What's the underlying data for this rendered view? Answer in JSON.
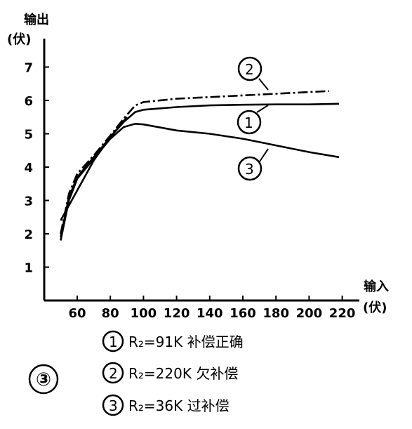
{
  "chart_data": {
    "type": "line",
    "figure_label": "③",
    "ylabel": "输出",
    "yunit": "(伏)",
    "xlabel": "输入",
    "xunit": "(伏)",
    "xlim": [
      45,
      225
    ],
    "ylim": [
      0,
      7.8
    ],
    "x_ticks": [
      "60",
      "80",
      "100",
      "120",
      "140",
      "160",
      "180",
      "200",
      "220"
    ],
    "y_ticks": [
      "1",
      "2",
      "3",
      "4",
      "5",
      "6",
      "7"
    ],
    "series": [
      {
        "marker": "1",
        "name": "R2=91K 补偿正确",
        "style": "solid",
        "points": [
          [
            50,
            1.9
          ],
          [
            55,
            3.1
          ],
          [
            60,
            3.7
          ],
          [
            70,
            4.3
          ],
          [
            80,
            4.9
          ],
          [
            88,
            5.35
          ],
          [
            95,
            5.65
          ],
          [
            100,
            5.72
          ],
          [
            120,
            5.8
          ],
          [
            140,
            5.85
          ],
          [
            160,
            5.87
          ],
          [
            180,
            5.88
          ],
          [
            200,
            5.88
          ],
          [
            218,
            5.9
          ]
        ]
      },
      {
        "marker": "2",
        "name": "R2=220K 欠补偿",
        "style": "dashdot",
        "points": [
          [
            50,
            2.0
          ],
          [
            55,
            3.2
          ],
          [
            60,
            3.8
          ],
          [
            70,
            4.35
          ],
          [
            80,
            4.95
          ],
          [
            88,
            5.45
          ],
          [
            95,
            5.85
          ],
          [
            100,
            5.95
          ],
          [
            120,
            6.05
          ],
          [
            140,
            6.1
          ],
          [
            160,
            6.15
          ],
          [
            180,
            6.2
          ],
          [
            200,
            6.25
          ],
          [
            212,
            6.28
          ]
        ]
      },
      {
        "marker": "3",
        "name": "R2=36K 过补偿",
        "style": "solid",
        "points": [
          [
            50,
            1.8
          ],
          [
            55,
            3.0
          ],
          [
            60,
            3.65
          ],
          [
            70,
            4.25
          ],
          [
            80,
            4.85
          ],
          [
            88,
            5.2
          ],
          [
            95,
            5.3
          ],
          [
            100,
            5.28
          ],
          [
            120,
            5.1
          ],
          [
            140,
            5.0
          ],
          [
            160,
            4.85
          ],
          [
            180,
            4.65
          ],
          [
            200,
            4.45
          ],
          [
            218,
            4.3
          ]
        ]
      },
      {
        "marker": "",
        "name": "",
        "style": "solid",
        "points": [
          [
            50,
            2.4
          ],
          [
            60,
            3.3
          ],
          [
            70,
            4.2
          ],
          [
            80,
            4.9
          ],
          [
            90,
            5.5
          ]
        ]
      }
    ],
    "legend": [
      {
        "marker": "1",
        "text": "R₂=91K 补偿正确"
      },
      {
        "marker": "2",
        "text": "R₂=220K 欠补偿"
      },
      {
        "marker": "3",
        "text": "R₂=36K 过补偿"
      }
    ]
  }
}
